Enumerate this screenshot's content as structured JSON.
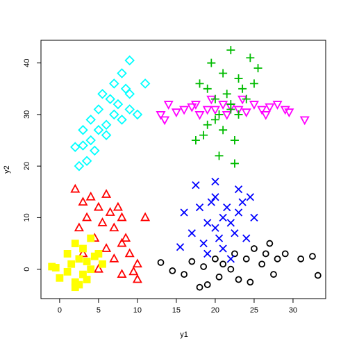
{
  "chart_data": {
    "type": "scatter",
    "x_label": "y1",
    "y_label": "y2",
    "xlim": [
      -2.4,
      34.2
    ],
    "ylim": [
      -5.7,
      44.4
    ],
    "xticks": [
      0,
      5,
      10,
      15,
      20,
      25,
      30
    ],
    "yticks": [
      0,
      10,
      20,
      30,
      40
    ],
    "series": [
      {
        "color": "#000000",
        "marker": "circle",
        "x": [
          13,
          14.5,
          16,
          17,
          18,
          18.5,
          19,
          20,
          20.5,
          21,
          22,
          22.5,
          23,
          24,
          24.5,
          25,
          26,
          26.5,
          27,
          27.5,
          28,
          29,
          31,
          32.5,
          33.2
        ],
        "y": [
          1.3,
          -0.3,
          -1,
          1.5,
          -3.5,
          0.5,
          -3,
          2,
          -1.5,
          1,
          0,
          3,
          -2,
          2,
          -2.5,
          4,
          1,
          3,
          5,
          -1,
          2,
          3,
          2,
          2.5,
          -1.2
        ]
      },
      {
        "color": "#0000ff",
        "marker": "x",
        "x": [
          15.5,
          16,
          17,
          17.5,
          18,
          18.5,
          19,
          19,
          19.5,
          20,
          20,
          20.5,
          21,
          21,
          21.5,
          22,
          22,
          22.5,
          23,
          23,
          23.5,
          24,
          24.5,
          25,
          20
        ],
        "y": [
          4.3,
          11,
          7,
          16.3,
          12,
          5,
          9,
          3,
          13,
          8,
          14,
          6,
          10,
          4,
          12,
          9,
          2,
          7,
          15.5,
          11,
          13,
          6,
          14,
          10,
          17
        ]
      },
      {
        "color": "#ff0000",
        "marker": "triangle",
        "x": [
          2,
          2.5,
          3,
          3,
          3.5,
          4,
          4.5,
          5,
          5,
          5.5,
          6,
          6,
          6.5,
          7,
          7,
          7.5,
          8,
          8,
          8.5,
          9,
          9.5,
          10,
          10,
          11,
          8
        ],
        "y": [
          15.5,
          8,
          13,
          3,
          10,
          14,
          6,
          12,
          0,
          9,
          14.5,
          4,
          11,
          8,
          2,
          12,
          10,
          -1,
          6,
          3,
          -0.5,
          1,
          -2,
          10,
          5
        ]
      },
      {
        "color": "#ffff00",
        "marker": "square",
        "x": [
          -1,
          -0.5,
          0,
          1,
          1.5,
          2,
          2,
          2.5,
          3,
          3,
          3.5,
          4,
          4,
          4.5,
          5,
          5.5,
          1,
          2.5,
          3.5,
          2
        ],
        "y": [
          0.5,
          0.3,
          -1.7,
          3,
          1,
          5,
          -2.5,
          2,
          4,
          -1,
          1.5,
          6,
          0,
          2.5,
          3,
          1,
          -0.5,
          -3,
          -2,
          -3.5
        ]
      },
      {
        "color": "#00ffff",
        "marker": "diamond",
        "x": [
          2,
          2.5,
          3,
          3,
          3.5,
          4,
          4,
          4.5,
          5,
          5,
          5.5,
          6,
          6,
          6.5,
          7,
          7,
          7.5,
          8,
          8,
          8.5,
          9,
          9,
          10,
          11,
          9
        ],
        "y": [
          23.7,
          20,
          27,
          24,
          21,
          29,
          25,
          23,
          31,
          27,
          34,
          28,
          26,
          33,
          30,
          36,
          32,
          29,
          38,
          35,
          40.5,
          31,
          30,
          36,
          34
        ]
      },
      {
        "color": "#ff00ff",
        "marker": "triangle-down",
        "x": [
          13,
          13.5,
          14,
          15,
          16,
          17,
          17.5,
          18,
          19,
          19.5,
          20,
          21,
          21.5,
          22,
          23,
          23.5,
          24,
          25,
          26,
          26.5,
          27,
          28,
          29,
          29.5,
          31.5
        ],
        "y": [
          30,
          29,
          32,
          30.5,
          31,
          31.5,
          32,
          30,
          31,
          33,
          31,
          32,
          30,
          31.5,
          31,
          33,
          30.5,
          32,
          31,
          30,
          31.5,
          32,
          31,
          30.5,
          29
        ]
      },
      {
        "color": "#00bb00",
        "marker": "plus",
        "x": [
          17.5,
          18,
          18.5,
          19,
          19.5,
          20,
          20,
          20.5,
          21,
          21,
          21.5,
          22,
          22,
          22.5,
          23,
          23,
          23.5,
          24,
          24.5,
          25,
          25.5,
          20.5,
          19,
          22.5,
          22
        ],
        "y": [
          25,
          36,
          26,
          35,
          40,
          29,
          33,
          22,
          38,
          27,
          34,
          42.5,
          32,
          20.5,
          37,
          30,
          35,
          33,
          41,
          36,
          39,
          30,
          28,
          25,
          31
        ]
      }
    ]
  }
}
